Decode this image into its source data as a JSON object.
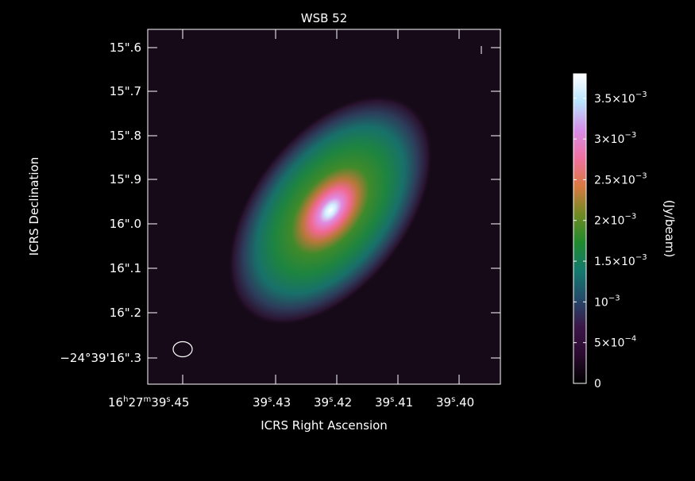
{
  "chart_data": {
    "type": "heatmap",
    "title": "WSB 52",
    "xlabel": "ICRS Right Ascension",
    "ylabel": "ICRS Declination",
    "colorbar_label": "(Jy/beam)",
    "x_ticks": [
      {
        "sup": "h",
        "mid": "27",
        "sup2": "m",
        "rest": "39",
        "sup3": "s",
        "tail": ".45",
        "prefix": "16"
      },
      {
        "prefix": "39",
        "sup": "s",
        "tail": ".43"
      },
      {
        "prefix": "39",
        "sup": "s",
        "tail": ".42"
      },
      {
        "prefix": "39",
        "sup": "s",
        "tail": ".41"
      },
      {
        "prefix": "39",
        "sup": "s",
        "tail": ".40"
      }
    ],
    "x_tick_text": [
      "16h27m39s.45",
      "39s.43",
      "39s.42",
      "39s.41",
      "39s.40"
    ],
    "y_tick_text": [
      "15\".6",
      "15\".7",
      "15\".8",
      "15\".9",
      "16\".0",
      "16\".1",
      "16\".2",
      "−24°39'16\".3"
    ],
    "colorbar": {
      "min": 0,
      "max": 0.0038,
      "ticks": [
        {
          "value": 0,
          "base": "0",
          "exp": ""
        },
        {
          "value": 0.0005,
          "base": "5×10",
          "exp": "−4"
        },
        {
          "value": 0.001,
          "base": "10",
          "exp": "−3"
        },
        {
          "value": 0.0015,
          "base": "1.5×10",
          "exp": "−3"
        },
        {
          "value": 0.002,
          "base": "2×10",
          "exp": "−3"
        },
        {
          "value": 0.0025,
          "base": "2.5×10",
          "exp": "−3"
        },
        {
          "value": 0.003,
          "base": "3×10",
          "exp": "−3"
        },
        {
          "value": 0.0035,
          "base": "3.5×10",
          "exp": "−3"
        }
      ],
      "colormap": [
        "#000000",
        "#2a0a2e",
        "#3a1648",
        "#244a6a",
        "#147a6e",
        "#1f8a2e",
        "#6f8a22",
        "#d87a40",
        "#f070a0",
        "#d68ee8",
        "#b8e4ff",
        "#ffffff"
      ]
    },
    "source": {
      "peak": 0.0038,
      "position_angle_deg": 35,
      "description_visible": false
    },
    "grid": false
  }
}
